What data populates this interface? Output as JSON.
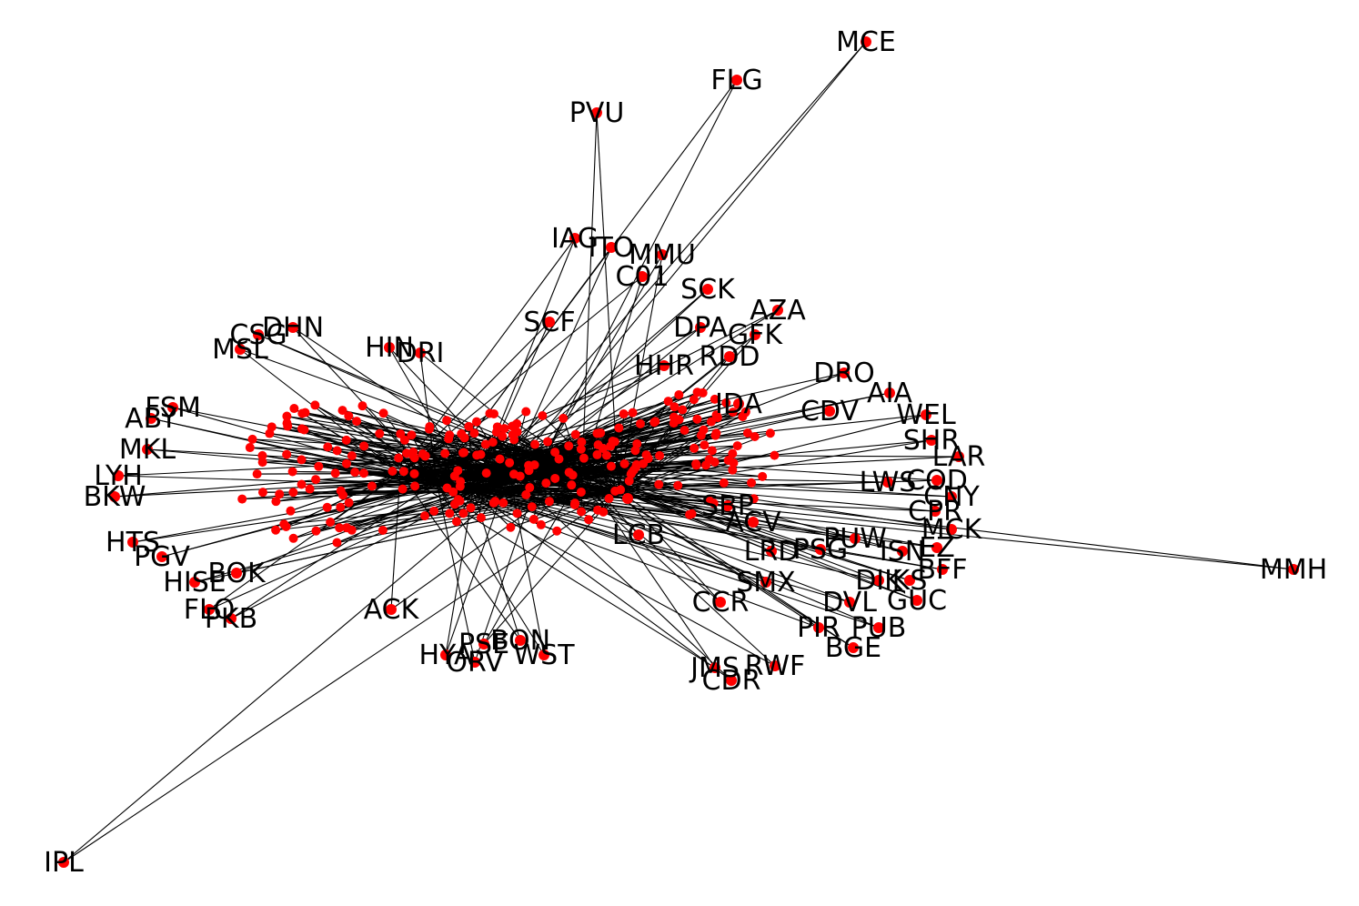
{
  "graph": {
    "node_color": "#ff0000",
    "edge_color": "#000000",
    "label_color": "#000000",
    "nodes": [
      {
        "id": "MCE",
        "label": "MCE"
      },
      {
        "id": "FLG",
        "label": "FLG"
      },
      {
        "id": "PVU",
        "label": "PVU"
      },
      {
        "id": "IAG",
        "label": "IAG"
      },
      {
        "id": "ITO",
        "label": "ITO"
      },
      {
        "id": "MMU",
        "label": "MMU"
      },
      {
        "id": "C01",
        "label": "C01"
      },
      {
        "id": "SCK",
        "label": "SCK"
      },
      {
        "id": "AZA",
        "label": "AZA"
      },
      {
        "id": "GFK",
        "label": "GFK"
      },
      {
        "id": "SCF",
        "label": "SCF"
      },
      {
        "id": "DHN",
        "label": "DHN"
      },
      {
        "id": "CSG",
        "label": "CSG"
      },
      {
        "id": "MSL",
        "label": "MSL"
      },
      {
        "id": "HIN",
        "label": "HIN"
      },
      {
        "id": "DRI",
        "label": "DRI"
      },
      {
        "id": "MKL",
        "label": "MKL"
      },
      {
        "id": "ABY",
        "label": "ABY"
      },
      {
        "id": "FSM",
        "label": "FSM"
      },
      {
        "id": "LYH",
        "label": "LYH"
      },
      {
        "id": "BKW",
        "label": "BKW"
      },
      {
        "id": "HTS",
        "label": "HTS"
      },
      {
        "id": "PGV",
        "label": "PGV"
      },
      {
        "id": "HISE",
        "label": "HISE"
      },
      {
        "id": "FLO",
        "label": "FLO"
      },
      {
        "id": "PKB",
        "label": "PKB"
      },
      {
        "id": "BOK",
        "label": "BOK"
      },
      {
        "id": "ACK",
        "label": "ACK"
      },
      {
        "id": "HYA",
        "label": "HYA"
      },
      {
        "id": "ORV",
        "label": "ORV"
      },
      {
        "id": "PSE",
        "label": "PSE"
      },
      {
        "id": "BON",
        "label": "BON"
      },
      {
        "id": "WST",
        "label": "WST"
      },
      {
        "id": "CCR",
        "label": "CCR"
      },
      {
        "id": "JMS",
        "label": "JMS"
      },
      {
        "id": "CDR",
        "label": "CDR"
      },
      {
        "id": "RWF",
        "label": "RWF"
      },
      {
        "id": "BGE",
        "label": "BGE"
      },
      {
        "id": "SMX",
        "label": "SMX"
      },
      {
        "id": "DVL",
        "label": "DVL"
      },
      {
        "id": "GUC",
        "label": "GUC"
      },
      {
        "id": "PIR",
        "label": "PIR"
      },
      {
        "id": "PUB",
        "label": "PUB"
      },
      {
        "id": "DIK",
        "label": "DIK"
      },
      {
        "id": "KS",
        "label": "KS"
      },
      {
        "id": "BFF",
        "label": "BFF"
      },
      {
        "id": "EZ",
        "label": "EZ"
      },
      {
        "id": "ISN",
        "label": "ISN"
      },
      {
        "id": "MCK",
        "label": "MCK"
      },
      {
        "id": "PUW",
        "label": "PUW"
      },
      {
        "id": "PSG",
        "label": "PSG"
      },
      {
        "id": "LRD",
        "label": "LRD"
      },
      {
        "id": "ACV",
        "label": "ACV"
      },
      {
        "id": "SBP",
        "label": "SBP"
      },
      {
        "id": "COD",
        "label": "COD"
      },
      {
        "id": "CNY",
        "label": "CNY"
      },
      {
        "id": "CPR",
        "label": "CPR"
      },
      {
        "id": "LAR",
        "label": "LAR"
      },
      {
        "id": "SHR",
        "label": "SHR"
      },
      {
        "id": "LWS",
        "label": "LWS"
      },
      {
        "id": "AIA",
        "label": "AIA"
      },
      {
        "id": "WEL",
        "label": "WEL"
      },
      {
        "id": "DRO",
        "label": "DRO"
      },
      {
        "id": "CDV",
        "label": "CDV"
      },
      {
        "id": "IDA",
        "label": "IDA"
      },
      {
        "id": "RDD",
        "label": "RDD"
      },
      {
        "id": "HHR",
        "label": "HHR"
      },
      {
        "id": "MMH",
        "label": "MMH"
      },
      {
        "id": "IPL",
        "label": "IPL"
      },
      {
        "id": "LCB",
        "label": "LCB"
      },
      {
        "id": "SMX2",
        "label": ""
      },
      {
        "id": "DPA",
        "label": "DPA"
      }
    ]
  }
}
